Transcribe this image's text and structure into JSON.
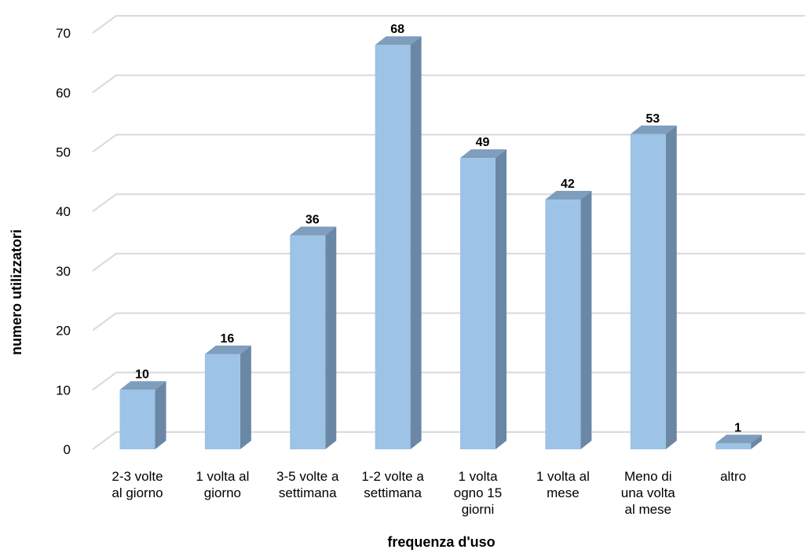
{
  "chart_data": {
    "type": "bar",
    "style": "3d-clustered-column",
    "categories": [
      [
        "2-3 volte",
        "al giorno"
      ],
      [
        "1 volta al",
        "giorno"
      ],
      [
        "3-5 volte a",
        "settimana"
      ],
      [
        "1-2 volte a",
        "settimana"
      ],
      [
        "1 volta",
        "ogno 15",
        "giorni"
      ],
      [
        "1 volta al",
        "mese"
      ],
      [
        "Meno di",
        "una volta",
        "al mese"
      ],
      [
        "altro"
      ]
    ],
    "values": [
      10,
      16,
      36,
      68,
      49,
      42,
      53,
      1
    ],
    "xlabel": "frequenza d'uso",
    "ylabel": "numero utilizzatori",
    "ylim": [
      0,
      70
    ],
    "yticks": [
      0,
      10,
      20,
      30,
      40,
      50,
      60,
      70
    ],
    "grid": true,
    "legend": "none",
    "data_labels": true,
    "colors": {
      "bar_front": "#9DC3E6",
      "bar_side": "#6A87A6",
      "bar_top": "#7F9DBD",
      "gridline": "#D9D9D9"
    }
  }
}
